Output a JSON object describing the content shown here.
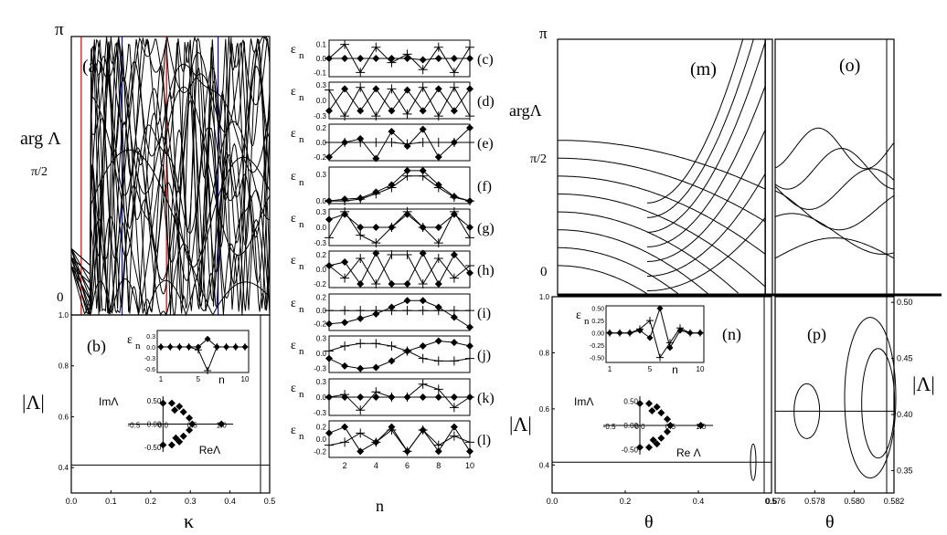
{
  "figure": {
    "left_symbols": {
      "pi": "π",
      "arg": "arg Λ",
      "half": "π/2",
      "zero": "0",
      "abs": "|Λ|",
      "kappa": "κ"
    },
    "right_symbols": {
      "pi": "π",
      "arg": "argΛ",
      "half": "π/2",
      "zero": "0",
      "abs_left": "|Λ|",
      "abs_right": "|Λ|",
      "theta_n": "θ",
      "theta_p": "θ"
    },
    "panel_letters": {
      "a": "(a)",
      "b": "(b)",
      "m": "(m)",
      "o": "(o)",
      "n": "(n)",
      "p": "(p)"
    },
    "strip_letters": [
      "(c)",
      "(d)",
      "(e)",
      "(f)",
      "(g)",
      "(h)",
      "(i)",
      "(j)",
      "(k)",
      "(l)"
    ],
    "eps_label": "ε",
    "eps_sub": "n",
    "n_label": "n",
    "inset_labels": {
      "im": "ImΛ",
      "re_b": "ReΛ",
      "re_n": "Re Λ"
    }
  },
  "chart_data": [
    {
      "id": "a",
      "type": "line",
      "title": "(a)",
      "xlabel": "κ",
      "ylabel": "arg Λ",
      "xlim": [
        0,
        0.5
      ],
      "ylim": [
        0,
        3.1416
      ],
      "yticklabels": [
        "0",
        "π/2",
        "π"
      ],
      "vlines": [
        {
          "x": 0.025,
          "color": "#d00000"
        },
        {
          "x": 0.128,
          "color": "#0000c0"
        },
        {
          "x": 0.24,
          "color": "#d00000"
        },
        {
          "x": 0.37,
          "color": "#0000c0"
        }
      ]
    },
    {
      "id": "b",
      "type": "line",
      "title": "(b)",
      "xlabel": "κ",
      "ylabel": "|Λ|",
      "xlim": [
        0,
        0.5
      ],
      "ylim": [
        0.3,
        1.0
      ],
      "xticks": [
        "0.0",
        "0.1",
        "0.2",
        "0.3",
        "0.4",
        "0.5"
      ],
      "yticks": [
        "0.4",
        "0.6",
        "0.8",
        "1.0"
      ],
      "line_value": 0.41,
      "inset_eps": {
        "xlim": [
          1,
          10
        ],
        "ylim": [
          -0.7,
          0.45
        ],
        "xticks": [
          "1",
          "5",
          "10"
        ],
        "yticks": [
          "0.3",
          "0.0",
          "-0.3",
          "-0.6"
        ],
        "xlabel": "n",
        "series": [
          {
            "name": "diamond",
            "values": [
              0,
              0,
              0,
              0,
              0,
              0.22,
              0,
              0,
              0,
              0
            ]
          },
          {
            "name": "plus",
            "values": [
              0,
              0,
              0,
              0,
              -0.08,
              -0.65,
              0,
              0,
              0,
              0
            ]
          }
        ]
      },
      "inset_eig": {
        "xticks": [
          "-0.5",
          "0.0",
          "0.5",
          "1.0"
        ],
        "yticks": [
          "0.50",
          "0.00",
          "-0.50"
        ],
        "points": [
          [
            0.0,
            0.45
          ],
          [
            0.15,
            0.45
          ],
          [
            0.28,
            0.38
          ],
          [
            0.35,
            0.26
          ],
          [
            0.45,
            0.13
          ],
          [
            0.5,
            0.0
          ],
          [
            0.45,
            -0.13
          ],
          [
            0.35,
            -0.26
          ],
          [
            0.28,
            -0.38
          ],
          [
            0.15,
            -0.45
          ],
          [
            0.0,
            -0.45
          ],
          [
            0.2,
            0.3
          ],
          [
            0.22,
            -0.3
          ],
          [
            1.0,
            0.0
          ]
        ]
      }
    },
    {
      "id": "strips",
      "type": "line",
      "xlabel": "n",
      "xlim": [
        1,
        10
      ],
      "xticks": [
        "2",
        "4",
        "6",
        "8",
        "10"
      ],
      "panels": [
        {
          "label": "(c)",
          "yticks": [
            "0.1",
            "0.0",
            "-0.1"
          ],
          "ylim": [
            -0.13,
            0.13
          ],
          "diamond": [
            0,
            0,
            0,
            0,
            0,
            0,
            -0.01,
            0,
            0,
            0
          ],
          "plus": [
            0,
            0.1,
            -0.1,
            0.08,
            -0.03,
            0.03,
            -0.08,
            0.08,
            -0.1,
            0.08
          ]
        },
        {
          "label": "(d)",
          "yticks": [
            "0.3",
            "0.0",
            "-0.3"
          ],
          "ylim": [
            -0.35,
            0.35
          ],
          "diamond": [
            -0.2,
            0.22,
            -0.2,
            0.22,
            -0.2,
            0.2,
            -0.2,
            0.22,
            -0.2,
            0.22
          ],
          "plus": [
            0.2,
            -0.3,
            0.25,
            -0.3,
            0.22,
            -0.26,
            0.25,
            -0.3,
            0.25,
            -0.3
          ]
        },
        {
          "label": "(e)",
          "yticks": [
            "0.2",
            "0.0",
            "-0.2"
          ],
          "ylim": [
            -0.25,
            0.25
          ],
          "diamond": [
            -0.2,
            0,
            0.05,
            -0.22,
            0.15,
            -0.05,
            0.18,
            -0.2,
            0,
            0.2
          ],
          "plus": [
            0,
            0,
            0,
            0,
            0,
            -0.02,
            0,
            0,
            0,
            0
          ]
        },
        {
          "label": "(f)",
          "yticks": [
            "0.3",
            "0.0"
          ],
          "ylim": [
            -0.03,
            0.38
          ],
          "diamond": [
            0,
            0.02,
            0.03,
            0.1,
            0.18,
            0.34,
            0.34,
            0.18,
            0.05,
            0
          ],
          "plus": [
            0,
            0,
            0.02,
            0.08,
            0.15,
            0.28,
            0.28,
            0.15,
            0.04,
            0
          ]
        },
        {
          "label": "(g)",
          "yticks": [
            "0.3",
            "0.0",
            "-0.3"
          ],
          "ylim": [
            -0.35,
            0.35
          ],
          "diamond": [
            0.15,
            0.25,
            0.0,
            0.0,
            0.0,
            0.25,
            0.0,
            0.0,
            0.25,
            0.0
          ],
          "plus": [
            -0.2,
            0.3,
            -0.15,
            -0.3,
            0.0,
            0.3,
            0.0,
            -0.3,
            0.3,
            -0.2
          ]
        },
        {
          "label": "(h)",
          "yticks": [
            "0.2",
            "0.0",
            "-0.2"
          ],
          "ylim": [
            -0.25,
            0.25
          ],
          "diamond": [
            0.05,
            0.1,
            -0.2,
            0.22,
            -0.2,
            -0.2,
            0.22,
            -0.2,
            0.2,
            -0.05
          ],
          "plus": [
            0.05,
            -0.12,
            0.15,
            -0.2,
            0.2,
            0.2,
            -0.2,
            0.15,
            -0.12,
            0.05
          ]
        },
        {
          "label": "(i)",
          "yticks": [
            "0.2",
            "0.0",
            "-0.2"
          ],
          "ylim": [
            -0.3,
            0.25
          ],
          "diamond": [
            -0.2,
            -0.18,
            -0.12,
            -0.05,
            0.05,
            0.15,
            0.15,
            0.05,
            -0.1,
            -0.25
          ],
          "plus": [
            0.0,
            0.0,
            0.0,
            0.0,
            0.0,
            0.0,
            0.0,
            0.0,
            0.0,
            0.0
          ]
        },
        {
          "label": "(j)",
          "yticks": [
            "0.3",
            "0.0",
            "-0.3"
          ],
          "ylim": [
            -0.38,
            0.35
          ],
          "diamond": [
            -0.1,
            -0.25,
            -0.3,
            -0.28,
            -0.15,
            0.05,
            0.15,
            0.25,
            0.22,
            0.15
          ],
          "plus": [
            0.05,
            0.15,
            0.2,
            0.2,
            0.15,
            0.05,
            -0.1,
            -0.15,
            -0.15,
            -0.1
          ]
        },
        {
          "label": "(k)",
          "yticks": [
            "0.3",
            "0.0",
            "-0.3"
          ],
          "ylim": [
            -0.35,
            0.35
          ],
          "diamond": [
            0,
            0,
            0,
            0,
            0,
            0,
            0,
            0,
            0,
            0
          ],
          "plus": [
            0,
            0.05,
            -0.25,
            0.1,
            0,
            0,
            0.25,
            0.15,
            -0.2,
            0
          ]
        },
        {
          "label": "(l)",
          "yticks": [
            "0.2",
            "0.0",
            "-0.2"
          ],
          "ylim": [
            -0.3,
            0.3
          ],
          "diamond": [
            0.1,
            0.2,
            -0.2,
            -0.05,
            0.2,
            -0.2,
            0.15,
            -0.2,
            0.2,
            -0.2
          ],
          "plus": [
            -0.1,
            -0.05,
            0.1,
            -0.05,
            0.15,
            -0.2,
            0.15,
            -0.1,
            0.05,
            -0.05
          ]
        }
      ]
    },
    {
      "id": "m",
      "type": "line",
      "title": "(m)",
      "ylabel": "argΛ",
      "xlim": [
        0,
        0.6
      ],
      "ylim": [
        0,
        3.1416
      ],
      "yticklabels": [
        "0",
        "π/2",
        "π"
      ]
    },
    {
      "id": "o",
      "type": "line",
      "title": "(o)",
      "xlim": [
        0.576,
        0.582
      ],
      "ylim": [
        0,
        3.1416
      ]
    },
    {
      "id": "n",
      "type": "line",
      "title": "(n)",
      "xlabel": "θ",
      "ylabel": "|Λ|",
      "xlim": [
        0,
        0.6
      ],
      "ylim": [
        0.3,
        1.0
      ],
      "xticks": [
        "0.0",
        "0.2",
        "0.4",
        "0.6"
      ],
      "yticks": [
        "0.4",
        "0.6",
        "0.8",
        "1.0"
      ],
      "line_value": 0.41,
      "inset_eps": {
        "xlim": [
          1,
          10
        ],
        "ylim": [
          -0.6,
          0.55
        ],
        "xticks": [
          "1",
          "5",
          "10"
        ],
        "yticks": [
          "0.50",
          "0.25",
          "0.00",
          "-0.25",
          "-0.50"
        ],
        "xlabel": "n",
        "series": [
          {
            "name": "diamond",
            "values": [
              0,
              0,
              0,
              0.05,
              -0.1,
              0.5,
              -0.3,
              0.05,
              0,
              0
            ]
          },
          {
            "name": "plus",
            "values": [
              0,
              0,
              0,
              0.08,
              0.25,
              -0.5,
              -0.2,
              0.1,
              0,
              0
            ]
          }
        ]
      },
      "inset_eig": {
        "xticks": [
          "-0.5",
          "0.0",
          "0.5",
          "1.0"
        ],
        "yticks": [
          "0.50",
          "0.00",
          "-0.50"
        ],
        "points": [
          [
            0.0,
            0.45
          ],
          [
            0.15,
            0.45
          ],
          [
            0.28,
            0.38
          ],
          [
            0.35,
            0.26
          ],
          [
            0.45,
            0.13
          ],
          [
            0.5,
            0.0
          ],
          [
            0.45,
            -0.13
          ],
          [
            0.35,
            -0.26
          ],
          [
            0.28,
            -0.38
          ],
          [
            0.15,
            -0.45
          ],
          [
            0.0,
            -0.45
          ],
          [
            0.2,
            0.3
          ],
          [
            0.22,
            -0.3
          ],
          [
            1.0,
            0.0
          ]
        ]
      }
    },
    {
      "id": "p",
      "type": "line",
      "title": "(p)",
      "xlabel": "θ",
      "ylabel": "|Λ|",
      "xlim": [
        0.576,
        0.582
      ],
      "ylim": [
        0.33,
        0.505
      ],
      "xticks": [
        "0.576",
        "0.578",
        "0.580",
        "0.582"
      ],
      "yticks": [
        "0.35",
        "0.40",
        "0.45",
        "0.50"
      ],
      "line_value": 0.403
    }
  ]
}
